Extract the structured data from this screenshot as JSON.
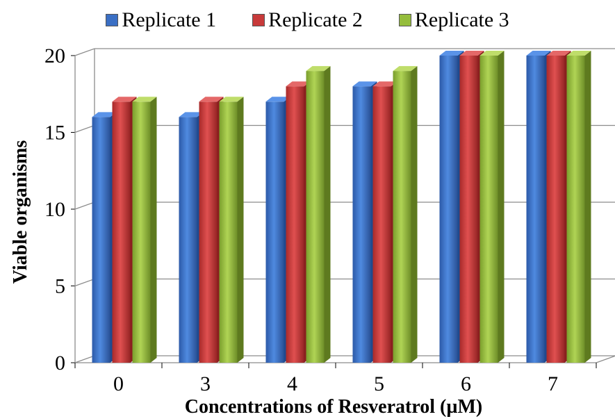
{
  "chart_data": {
    "type": "bar",
    "title": "",
    "xlabel": "Concentrations of Resveratrol (µM)",
    "ylabel": "Viable organisms",
    "categories": [
      "0",
      "3",
      "4",
      "5",
      "6",
      "7"
    ],
    "series": [
      {
        "name": "Replicate 1",
        "color": "#3a6fc4",
        "values": [
          16,
          16,
          17,
          18,
          20,
          20
        ]
      },
      {
        "name": "Replicate 2",
        "color": "#c83a3a",
        "values": [
          17,
          17,
          18,
          18,
          20,
          20
        ]
      },
      {
        "name": "Replicate 3",
        "color": "#95bd3c",
        "values": [
          17,
          17,
          19,
          19,
          20,
          20
        ]
      }
    ],
    "ylim": [
      0,
      20
    ],
    "yticks": [
      "0",
      "5",
      "10",
      "15",
      "20"
    ],
    "grid": true,
    "legend_position": "top",
    "style": "3d-bar"
  }
}
